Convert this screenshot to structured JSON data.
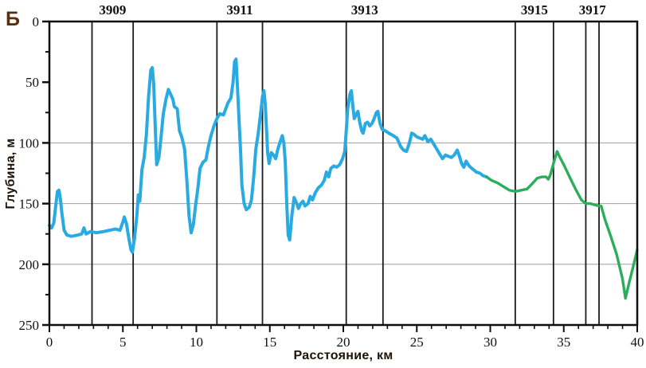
{
  "figure_label": "Б",
  "colors": {
    "profile_blue": "#29ABE2",
    "profile_green": "#2BAD5C",
    "frame": "#0f0f0f",
    "station_line": "#1a1a1a",
    "gridline": "#9e9e9e",
    "tick_text": "#111111",
    "axis_title": "#1c1208",
    "figure_label": "#5c2e0e"
  },
  "chart_data": {
    "type": "line",
    "title": "",
    "xlabel": "Расстояние, км",
    "ylabel": "Глубина, м",
    "xlim": [
      0,
      40
    ],
    "ylim": [
      0,
      250
    ],
    "y_inverted": true,
    "grid": "horizontal-only",
    "gridlines_y": [
      100,
      150,
      200
    ],
    "x_major_ticks": [
      0,
      5,
      10,
      15,
      20,
      25,
      30,
      35,
      40
    ],
    "x_minor_step": 1,
    "y_major_ticks": [
      0,
      50,
      100,
      150,
      200,
      250
    ],
    "y_minor_step": 25,
    "legend_position": "none",
    "stations": [
      {
        "label": "3909",
        "from_km": 2.9,
        "to_km": 5.7
      },
      {
        "label": "3911",
        "from_km": 11.4,
        "to_km": 14.5
      },
      {
        "label": "3913",
        "from_km": 20.2,
        "to_km": 22.7
      },
      {
        "label": "3915",
        "from_km": 31.7,
        "to_km": 34.3
      },
      {
        "label": "3917",
        "from_km": 36.5,
        "to_km": 37.4
      }
    ],
    "series": [
      {
        "name": "depth-profile-blue",
        "color": "#29ABE2",
        "width": 4,
        "points": [
          [
            0,
            168
          ],
          [
            0.15,
            170
          ],
          [
            0.3,
            166
          ],
          [
            0.45,
            150
          ],
          [
            0.55,
            140
          ],
          [
            0.65,
            139
          ],
          [
            0.75,
            146
          ],
          [
            0.85,
            158
          ],
          [
            1.0,
            172
          ],
          [
            1.2,
            176
          ],
          [
            1.5,
            177
          ],
          [
            1.9,
            176
          ],
          [
            2.2,
            175
          ],
          [
            2.35,
            170
          ],
          [
            2.5,
            175
          ],
          [
            2.8,
            173
          ],
          [
            3.2,
            174
          ],
          [
            3.7,
            173
          ],
          [
            4.1,
            172
          ],
          [
            4.5,
            171
          ],
          [
            4.8,
            172
          ],
          [
            5.0,
            165
          ],
          [
            5.1,
            161
          ],
          [
            5.25,
            167
          ],
          [
            5.4,
            178
          ],
          [
            5.55,
            188
          ],
          [
            5.65,
            190
          ],
          [
            5.8,
            178
          ],
          [
            5.95,
            160
          ],
          [
            6.05,
            143
          ],
          [
            6.15,
            148
          ],
          [
            6.3,
            122
          ],
          [
            6.45,
            112
          ],
          [
            6.6,
            93
          ],
          [
            6.75,
            62
          ],
          [
            6.9,
            40
          ],
          [
            7.0,
            38
          ],
          [
            7.1,
            52
          ],
          [
            7.2,
            85
          ],
          [
            7.3,
            118
          ],
          [
            7.45,
            112
          ],
          [
            7.6,
            95
          ],
          [
            7.75,
            76
          ],
          [
            7.95,
            63
          ],
          [
            8.1,
            56
          ],
          [
            8.25,
            60
          ],
          [
            8.4,
            64
          ],
          [
            8.5,
            70
          ],
          [
            8.7,
            72
          ],
          [
            8.85,
            90
          ],
          [
            9.0,
            95
          ],
          [
            9.2,
            105
          ],
          [
            9.35,
            130
          ],
          [
            9.5,
            160
          ],
          [
            9.65,
            174
          ],
          [
            9.8,
            167
          ],
          [
            9.95,
            151
          ],
          [
            10.1,
            138
          ],
          [
            10.25,
            121
          ],
          [
            10.45,
            116
          ],
          [
            10.65,
            114
          ],
          [
            10.8,
            104
          ],
          [
            11.0,
            94
          ],
          [
            11.2,
            86
          ],
          [
            11.4,
            80
          ],
          [
            11.6,
            76
          ],
          [
            11.85,
            77
          ],
          [
            12.0,
            72
          ],
          [
            12.15,
            67
          ],
          [
            12.35,
            63
          ],
          [
            12.5,
            50
          ],
          [
            12.6,
            33
          ],
          [
            12.7,
            31
          ],
          [
            12.8,
            55
          ],
          [
            12.9,
            80
          ],
          [
            13.0,
            105
          ],
          [
            13.1,
            135
          ],
          [
            13.25,
            150
          ],
          [
            13.4,
            155
          ],
          [
            13.6,
            153
          ],
          [
            13.75,
            147
          ],
          [
            13.9,
            128
          ],
          [
            14.05,
            105
          ],
          [
            14.2,
            93
          ],
          [
            14.35,
            78
          ],
          [
            14.5,
            62
          ],
          [
            14.6,
            57
          ],
          [
            14.7,
            70
          ],
          [
            14.85,
            108
          ],
          [
            14.95,
            117
          ],
          [
            15.1,
            108
          ],
          [
            15.25,
            110
          ],
          [
            15.4,
            113
          ],
          [
            15.55,
            105
          ],
          [
            15.7,
            99
          ],
          [
            15.85,
            94
          ],
          [
            15.95,
            100
          ],
          [
            16.05,
            115
          ],
          [
            16.15,
            150
          ],
          [
            16.25,
            176
          ],
          [
            16.35,
            180
          ],
          [
            16.5,
            160
          ],
          [
            16.65,
            145
          ],
          [
            16.8,
            149
          ],
          [
            16.95,
            154
          ],
          [
            17.1,
            150
          ],
          [
            17.25,
            148
          ],
          [
            17.4,
            152
          ],
          [
            17.6,
            150
          ],
          [
            17.75,
            144
          ],
          [
            17.9,
            147
          ],
          [
            18.1,
            141
          ],
          [
            18.3,
            137
          ],
          [
            18.5,
            135
          ],
          [
            18.7,
            131
          ],
          [
            18.85,
            124
          ],
          [
            19.0,
            128
          ],
          [
            19.15,
            121
          ],
          [
            19.35,
            119
          ],
          [
            19.55,
            120
          ],
          [
            19.75,
            118
          ],
          [
            19.95,
            113
          ],
          [
            20.1,
            107
          ],
          [
            20.2,
            90
          ],
          [
            20.3,
            72
          ],
          [
            20.45,
            60
          ],
          [
            20.55,
            57
          ],
          [
            20.65,
            70
          ],
          [
            20.75,
            80
          ],
          [
            20.9,
            76
          ],
          [
            21.0,
            74
          ],
          [
            21.1,
            82
          ],
          [
            21.25,
            90
          ],
          [
            21.35,
            92
          ],
          [
            21.5,
            84
          ],
          [
            21.65,
            83
          ],
          [
            21.8,
            86
          ],
          [
            21.95,
            84
          ],
          [
            22.1,
            80
          ],
          [
            22.25,
            75
          ],
          [
            22.35,
            74
          ],
          [
            22.5,
            84
          ],
          [
            22.65,
            89
          ],
          [
            22.85,
            90
          ],
          [
            23.1,
            92
          ],
          [
            23.4,
            94
          ],
          [
            23.65,
            96
          ],
          [
            23.9,
            103
          ],
          [
            24.1,
            106
          ],
          [
            24.3,
            107
          ],
          [
            24.5,
            100
          ],
          [
            24.65,
            92
          ],
          [
            24.8,
            93
          ],
          [
            25.0,
            95
          ],
          [
            25.2,
            96
          ],
          [
            25.4,
            97
          ],
          [
            25.55,
            94
          ],
          [
            25.75,
            99
          ],
          [
            25.95,
            97
          ],
          [
            26.15,
            101
          ],
          [
            26.35,
            105
          ],
          [
            26.55,
            109
          ],
          [
            26.75,
            113
          ],
          [
            26.95,
            110
          ],
          [
            27.15,
            111
          ],
          [
            27.35,
            112
          ],
          [
            27.55,
            110
          ],
          [
            27.75,
            106
          ],
          [
            27.9,
            111
          ],
          [
            28.05,
            117
          ],
          [
            28.2,
            120
          ],
          [
            28.35,
            115
          ],
          [
            28.5,
            118
          ],
          [
            28.65,
            120
          ],
          [
            28.85,
            122
          ],
          [
            29.05,
            124
          ],
          [
            29.3,
            125
          ],
          [
            29.5,
            127
          ],
          [
            29.75,
            128
          ]
        ]
      },
      {
        "name": "depth-profile-green",
        "color": "#2BAD5C",
        "width": 3.4,
        "points": [
          [
            29.75,
            128
          ],
          [
            30.1,
            131
          ],
          [
            30.5,
            133
          ],
          [
            30.9,
            136
          ],
          [
            31.3,
            139
          ],
          [
            31.7,
            140
          ],
          [
            32.1,
            139
          ],
          [
            32.5,
            138
          ],
          [
            32.9,
            133
          ],
          [
            33.2,
            129
          ],
          [
            33.5,
            128
          ],
          [
            33.8,
            128
          ],
          [
            33.95,
            130
          ],
          [
            34.1,
            126
          ],
          [
            34.3,
            117
          ],
          [
            34.55,
            107
          ],
          [
            34.7,
            111
          ],
          [
            35.0,
            118
          ],
          [
            35.4,
            128
          ],
          [
            35.8,
            138
          ],
          [
            36.2,
            147
          ],
          [
            36.5,
            150
          ],
          [
            36.8,
            150
          ],
          [
            37.1,
            151
          ],
          [
            37.4,
            152
          ],
          [
            37.55,
            152
          ],
          [
            37.8,
            163
          ],
          [
            38.2,
            177
          ],
          [
            38.6,
            192
          ],
          [
            39.0,
            212
          ],
          [
            39.2,
            228
          ],
          [
            39.45,
            215
          ],
          [
            39.7,
            203
          ],
          [
            40.0,
            188
          ]
        ]
      }
    ]
  }
}
